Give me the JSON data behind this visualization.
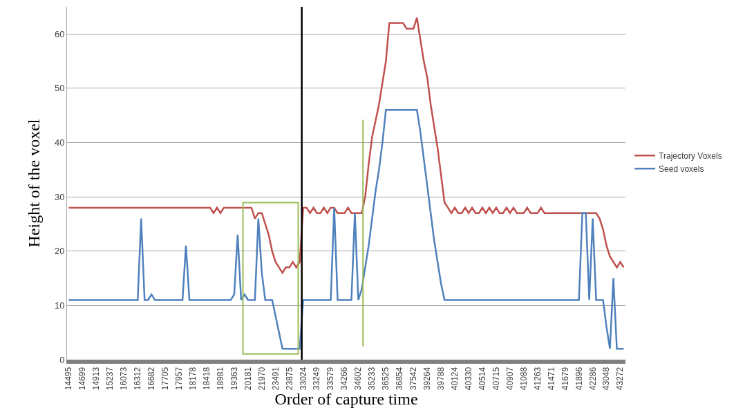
{
  "chart_data": {
    "type": "line",
    "xlabel": "Order of capture time",
    "ylabel": "Height of the voxel",
    "categories": [
      "14495",
      null,
      null,
      null,
      "14699",
      null,
      null,
      null,
      "14913",
      null,
      null,
      null,
      "15237",
      null,
      null,
      null,
      "16073",
      null,
      null,
      null,
      "16312",
      null,
      null,
      null,
      "16682",
      null,
      null,
      null,
      "17705",
      null,
      null,
      null,
      "17957",
      null,
      null,
      null,
      "18178",
      null,
      null,
      null,
      "18418",
      null,
      null,
      null,
      "18981",
      null,
      null,
      null,
      "19363",
      null,
      null,
      null,
      "20181",
      null,
      null,
      null,
      "21970",
      null,
      null,
      null,
      "23491",
      null,
      null,
      null,
      "23875",
      null,
      null,
      null,
      "33024",
      null,
      null,
      null,
      "33249",
      null,
      null,
      null,
      "33579",
      null,
      null,
      null,
      "34266",
      null,
      null,
      null,
      "34602",
      null,
      null,
      null,
      "35233",
      null,
      null,
      null,
      "36525",
      null,
      null,
      null,
      "36854",
      null,
      null,
      null,
      "37542",
      null,
      null,
      null,
      "39264",
      null,
      null,
      null,
      "39788",
      null,
      null,
      null,
      "40124",
      null,
      null,
      null,
      "40330",
      null,
      null,
      null,
      "40514",
      null,
      null,
      null,
      "40715",
      null,
      null,
      null,
      "40907",
      null,
      null,
      null,
      "41088",
      null,
      null,
      null,
      "41263",
      null,
      null,
      null,
      "41471",
      null,
      null,
      null,
      "41679",
      null,
      null,
      null,
      "41896",
      null,
      null,
      null,
      "42286",
      null,
      null,
      null,
      "43048",
      null,
      null,
      null,
      "43272",
      null
    ],
    "series": [
      {
        "name": "Trajectory Voxels",
        "color": "#c0504d",
        "values": [
          28,
          28,
          28,
          28,
          28,
          28,
          28,
          28,
          28,
          28,
          28,
          28,
          28,
          28,
          28,
          28,
          28,
          28,
          28,
          28,
          28,
          28,
          28,
          28,
          28,
          28,
          28,
          28,
          28,
          28,
          28,
          28,
          28,
          28,
          28,
          28,
          28,
          28,
          28,
          28,
          28,
          28,
          27,
          28,
          27,
          28,
          28,
          28,
          28,
          28,
          28,
          28,
          28,
          28,
          26,
          27,
          27,
          25,
          23,
          20,
          18,
          17,
          16,
          17,
          17,
          18,
          17,
          18,
          28,
          28,
          27,
          28,
          27,
          27,
          28,
          27,
          28,
          28,
          27,
          27,
          27,
          28,
          27,
          27,
          27,
          27,
          30,
          36,
          41,
          44,
          47,
          51,
          55,
          62,
          62,
          62,
          62,
          62,
          61,
          61,
          61,
          63,
          59,
          55,
          52,
          47,
          43,
          39,
          34,
          29,
          28,
          27,
          28,
          27,
          27,
          28,
          27,
          28,
          27,
          27,
          28,
          27,
          28,
          27,
          28,
          27,
          27,
          28,
          27,
          28,
          27,
          27,
          27,
          28,
          27,
          27,
          27,
          28,
          27,
          27,
          27,
          27,
          27,
          27,
          27,
          27,
          27,
          27,
          27,
          27,
          27,
          27,
          27,
          27,
          26,
          24,
          21,
          19,
          18,
          17,
          18,
          17
        ]
      },
      {
        "name": "Seed voxels",
        "color": "#4f81bd",
        "values": [
          11,
          11,
          11,
          11,
          11,
          11,
          11,
          11,
          11,
          11,
          11,
          11,
          11,
          11,
          11,
          11,
          11,
          11,
          11,
          11,
          11,
          26,
          11,
          11,
          12,
          11,
          11,
          11,
          11,
          11,
          11,
          11,
          11,
          11,
          21,
          11,
          11,
          11,
          11,
          11,
          11,
          11,
          11,
          11,
          11,
          11,
          11,
          11,
          12,
          23,
          11,
          12,
          11,
          11,
          11,
          26,
          16,
          11,
          11,
          11,
          8,
          5,
          2,
          2,
          2,
          2,
          2,
          2,
          11,
          11,
          11,
          11,
          11,
          11,
          11,
          11,
          11,
          28,
          11,
          11,
          11,
          11,
          11,
          27,
          11,
          13,
          17,
          21,
          26,
          31,
          35,
          40,
          46,
          46,
          46,
          46,
          46,
          46,
          46,
          46,
          46,
          46,
          42,
          37,
          32,
          27,
          22,
          18,
          14,
          11,
          11,
          11,
          11,
          11,
          11,
          11,
          11,
          11,
          11,
          11,
          11,
          11,
          11,
          11,
          11,
          11,
          11,
          11,
          11,
          11,
          11,
          11,
          11,
          11,
          11,
          11,
          11,
          11,
          11,
          11,
          11,
          11,
          11,
          11,
          11,
          11,
          11,
          11,
          11,
          27,
          27,
          11,
          26,
          11,
          11,
          11,
          6,
          2,
          15,
          2,
          2,
          2
        ]
      }
    ],
    "ylim": [
      0,
      65
    ],
    "yticks": [
      0,
      10,
      20,
      30,
      40,
      50,
      60
    ],
    "grid": "y",
    "legend": "right",
    "marker": "none",
    "line_style": "solid",
    "ref_lines": [
      {
        "axis": "x",
        "value": "33024",
        "color": "#000000"
      }
    ]
  }
}
